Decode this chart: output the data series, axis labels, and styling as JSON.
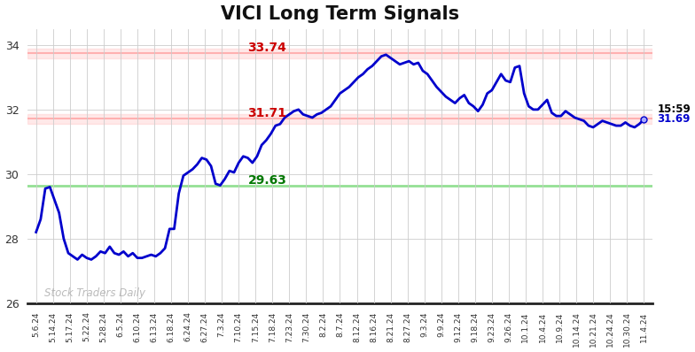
{
  "title": "VICI Long Term Signals",
  "title_fontsize": 15,
  "line_color": "#0000cc",
  "line_width": 2.0,
  "background_color": "#ffffff",
  "grid_color": "#cccccc",
  "hline_red_1": 33.74,
  "hline_red_2": 31.71,
  "hline_green": 29.63,
  "hline_red_color": "#ffaaaa",
  "hline_green_color": "#88dd88",
  "label_red_1": "33.74",
  "label_red_2": "31.71",
  "label_green": "29.63",
  "label_red_color": "#cc0000",
  "label_green_color": "#007700",
  "watermark_text": "Stock Traders Daily",
  "watermark_color": "#aaaaaa",
  "last_time": "15:59",
  "last_price": "31.69",
  "last_price_color": "#0000cc",
  "last_time_color": "#000000",
  "ylim": [
    26.0,
    34.5
  ],
  "yticks": [
    26,
    28,
    30,
    32,
    34
  ],
  "x_labels": [
    "5.6.24",
    "5.14.24",
    "5.17.24",
    "5.22.24",
    "5.28.24",
    "6.5.24",
    "6.10.24",
    "6.13.24",
    "6.18.24",
    "6.24.24",
    "6.27.24",
    "7.3.24",
    "7.10.24",
    "7.15.24",
    "7.18.24",
    "7.23.24",
    "7.30.24",
    "8.2.24",
    "8.7.24",
    "8.12.24",
    "8.16.24",
    "8.21.24",
    "8.27.24",
    "9.3.24",
    "9.9.24",
    "9.12.24",
    "9.18.24",
    "9.23.24",
    "9.26.24",
    "10.1.24",
    "10.4.24",
    "10.9.24",
    "10.14.24",
    "10.21.24",
    "10.24.24",
    "10.30.24",
    "11.4.24"
  ],
  "y_values": [
    28.2,
    28.6,
    29.55,
    29.6,
    29.2,
    28.8,
    28.0,
    27.55,
    27.45,
    27.35,
    27.5,
    27.4,
    27.35,
    27.45,
    27.6,
    27.55,
    27.75,
    27.55,
    27.5,
    27.6,
    27.45,
    27.55,
    27.4,
    27.4,
    27.45,
    27.5,
    27.45,
    27.55,
    27.7,
    28.3,
    28.3,
    29.4,
    29.95,
    30.05,
    30.15,
    30.3,
    30.5,
    30.45,
    30.25,
    29.7,
    29.65,
    29.85,
    30.1,
    30.05,
    30.35,
    30.55,
    30.5,
    30.35,
    30.55,
    30.9,
    31.05,
    31.25,
    31.5,
    31.55,
    31.75,
    31.85,
    31.95,
    32.0,
    31.85,
    31.8,
    31.75,
    31.85,
    31.9,
    32.0,
    32.1,
    32.3,
    32.5,
    32.6,
    32.7,
    32.85,
    33.0,
    33.1,
    33.25,
    33.35,
    33.5,
    33.65,
    33.7,
    33.6,
    33.5,
    33.4,
    33.45,
    33.5,
    33.4,
    33.45,
    33.2,
    33.1,
    32.9,
    32.7,
    32.55,
    32.4,
    32.3,
    32.2,
    32.35,
    32.45,
    32.2,
    32.1,
    31.95,
    32.15,
    32.5,
    32.6,
    32.85,
    33.1,
    32.9,
    32.85,
    33.3,
    33.35,
    32.5,
    32.1,
    32.0,
    32.0,
    32.15,
    32.3,
    31.9,
    31.8,
    31.8,
    31.95,
    31.85,
    31.75,
    31.7,
    31.65,
    31.5,
    31.45,
    31.55,
    31.65,
    31.6,
    31.55,
    31.5,
    31.5,
    31.6,
    31.5,
    31.45,
    31.55,
    31.69
  ]
}
